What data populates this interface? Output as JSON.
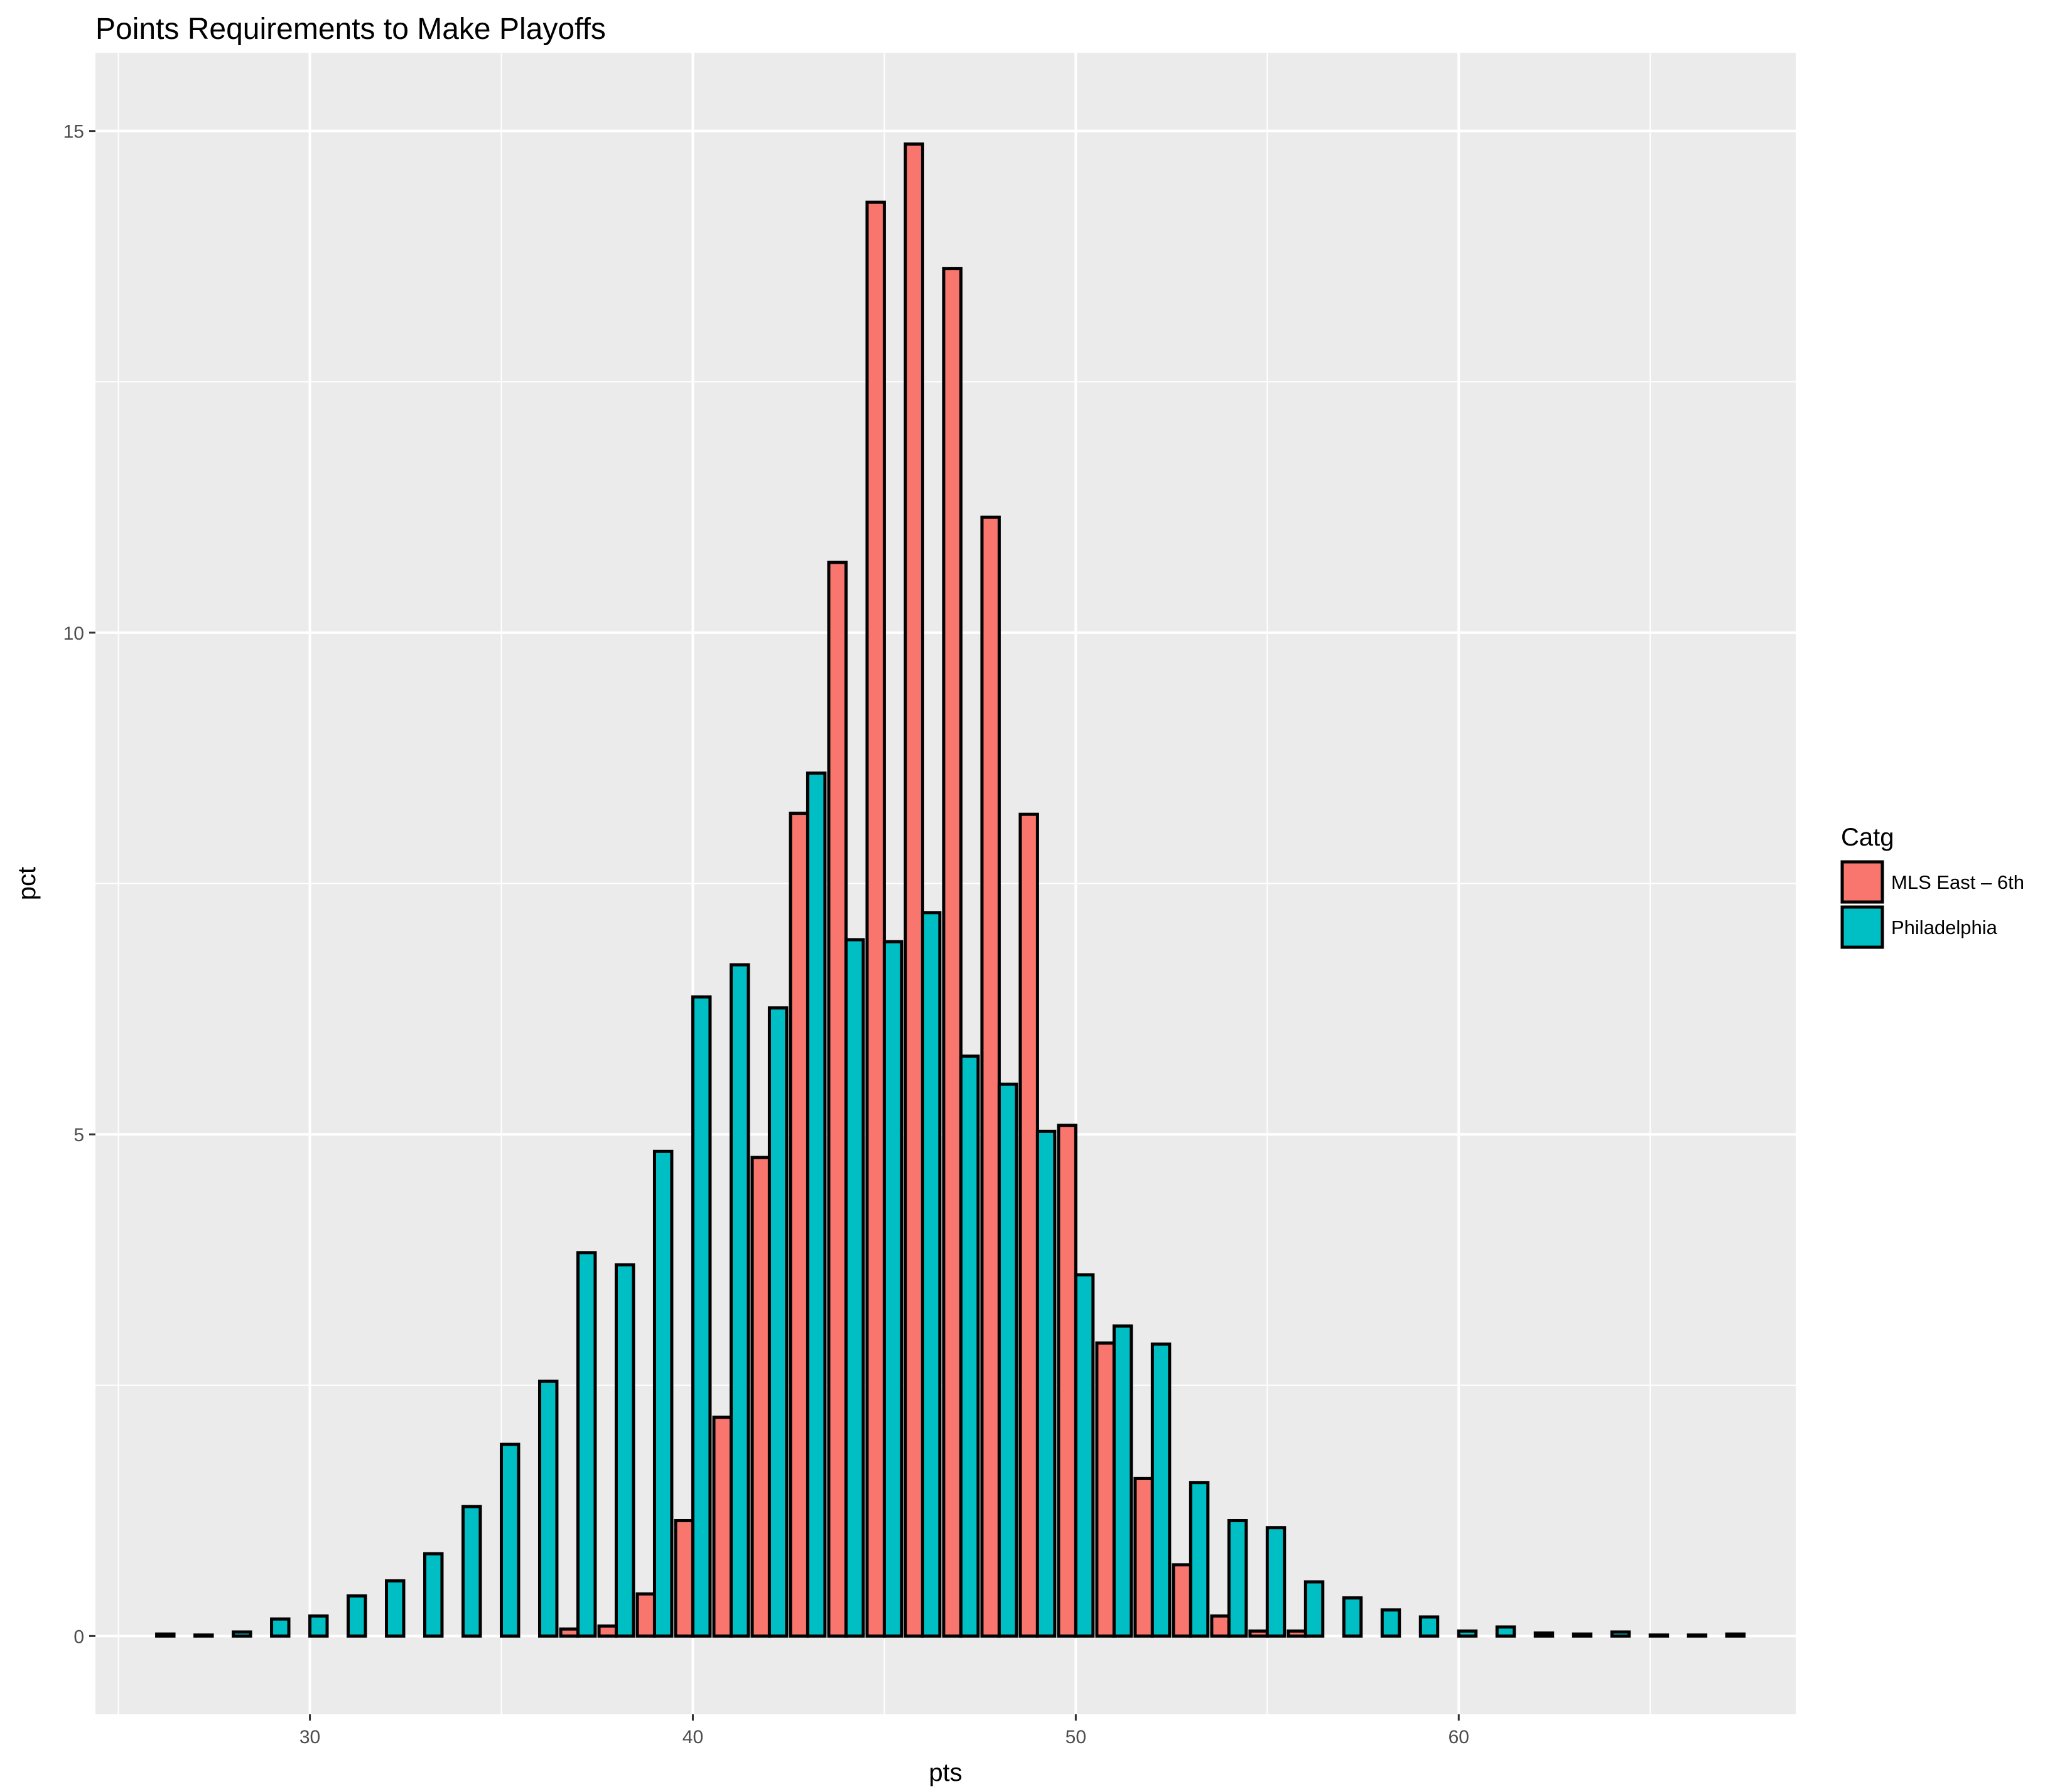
{
  "chart_data": {
    "type": "bar",
    "title": "Points Requirements to Make Playoffs",
    "xlabel": "pts",
    "ylabel": "pct",
    "xlim": [
      24.4,
      68.8
    ],
    "ylim": [
      -0.78,
      15.78
    ],
    "x_ticks": [
      30,
      40,
      50,
      60
    ],
    "y_ticks": [
      0,
      5,
      10,
      15
    ],
    "x_tick_labels": [
      "30",
      "40",
      "50",
      "60"
    ],
    "y_tick_labels": [
      "0",
      "5",
      "10",
      "15"
    ],
    "grid": true,
    "legend": {
      "title": "Catg",
      "position": "right"
    },
    "x": [
      26,
      27,
      28,
      29,
      30,
      31,
      32,
      33,
      34,
      35,
      36,
      37,
      38,
      39,
      40,
      41,
      42,
      43,
      44,
      45,
      46,
      47,
      48,
      49,
      50,
      51,
      52,
      53,
      54,
      55,
      56,
      57,
      58,
      59,
      60,
      61,
      62,
      63,
      64,
      65,
      66,
      67
    ],
    "series": [
      {
        "name": "MLS East – 6th",
        "color": "#F8766D",
        "values": [
          0,
          0,
          0,
          0,
          0,
          0,
          0,
          0,
          0,
          0,
          0,
          0.07,
          0.1,
          0.42,
          1.15,
          2.18,
          4.77,
          8.2,
          10.7,
          14.29,
          14.87,
          13.63,
          11.15,
          8.19,
          5.09,
          2.92,
          1.57,
          0.71,
          0.2,
          0.05,
          0.05,
          0,
          0,
          0,
          0,
          0,
          0,
          0,
          0,
          0,
          0,
          0
        ]
      },
      {
        "name": "Philadelphia",
        "color": "#00BFC4",
        "values": [
          0.02,
          0.01,
          0.04,
          0.17,
          0.2,
          0.4,
          0.55,
          0.82,
          1.29,
          1.91,
          2.54,
          3.82,
          3.7,
          4.83,
          6.37,
          6.69,
          6.26,
          8.6,
          6.94,
          6.92,
          7.21,
          5.78,
          5.5,
          5.03,
          3.6,
          3.09,
          2.91,
          1.53,
          1.15,
          1.08,
          0.54,
          0.38,
          0.26,
          0.19,
          0.05,
          0.09,
          0.03,
          0.02,
          0.04,
          0.01,
          0.01,
          0.02
        ]
      }
    ]
  }
}
